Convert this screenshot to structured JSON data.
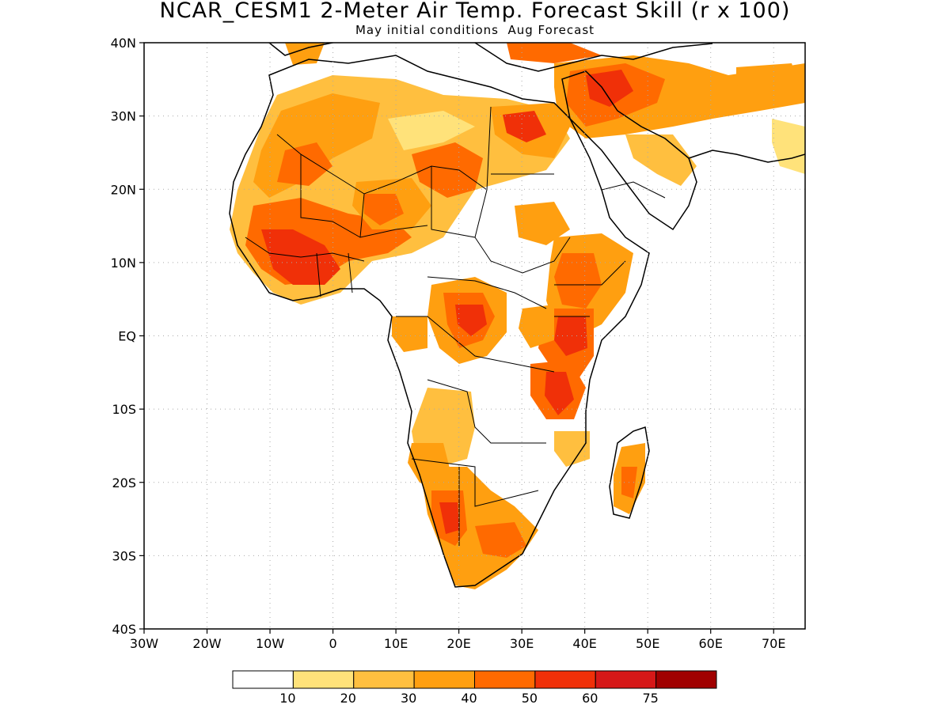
{
  "map": {
    "title": "NCAR_CESM1 2-Meter Air Temp. Forecast Skill (r x 100)",
    "subtitle": "May initial conditions  Aug Forecast",
    "lon_ticks": [
      "30W",
      "20W",
      "10W",
      "0",
      "10E",
      "20E",
      "30E",
      "40E",
      "50E",
      "60E",
      "70E"
    ],
    "lat_ticks": [
      "40N",
      "30N",
      "20N",
      "10N",
      "EQ",
      "10S",
      "20S",
      "30S",
      "40S"
    ],
    "extent": {
      "lon": [
        -30,
        75
      ],
      "lat": [
        -40,
        40
      ]
    },
    "grid": "dotted"
  },
  "colorbar": {
    "labels": [
      "10",
      "20",
      "30",
      "40",
      "50",
      "60",
      "75"
    ],
    "colors": [
      "#ffffff",
      "#ffe27a",
      "#ffbf3f",
      "#ff9f10",
      "#ff6a00",
      "#f03008",
      "#d61818",
      "#a00000"
    ]
  }
}
